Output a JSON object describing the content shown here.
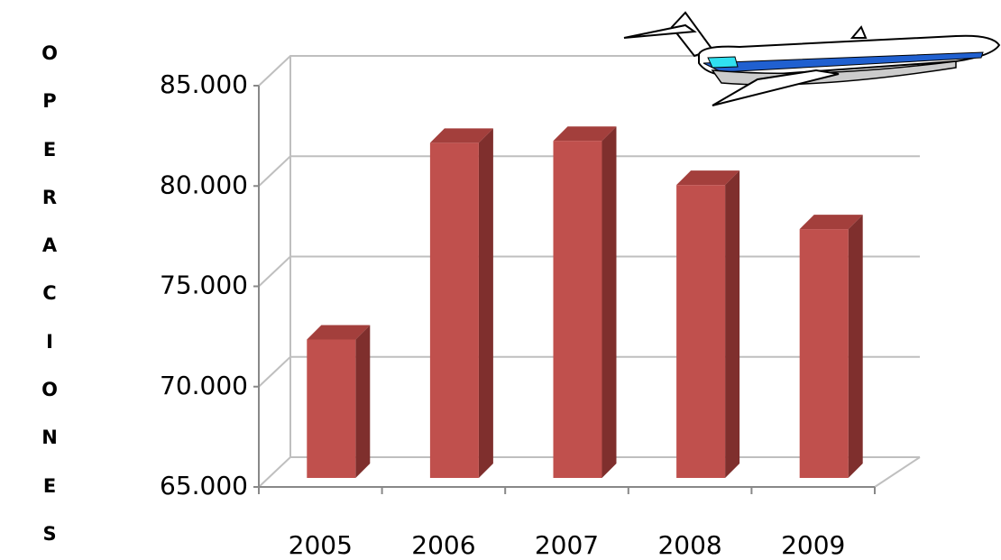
{
  "chart_data": {
    "type": "bar3d",
    "y_label": "OPERACIONES",
    "categories": [
      "2005",
      "2006",
      "2007",
      "2008",
      "2009"
    ],
    "values": [
      71900,
      81700,
      81800,
      79600,
      77400
    ],
    "color": "#c0504d",
    "ylim": [
      65000,
      85000
    ],
    "yticks": [
      {
        "value": 65000,
        "label": "65.000"
      },
      {
        "value": 70000,
        "label": "70.000"
      },
      {
        "value": 75000,
        "label": "75.000"
      },
      {
        "value": 80000,
        "label": "80.000"
      },
      {
        "value": 85000,
        "label": "85.000"
      }
    ],
    "grid": true
  }
}
